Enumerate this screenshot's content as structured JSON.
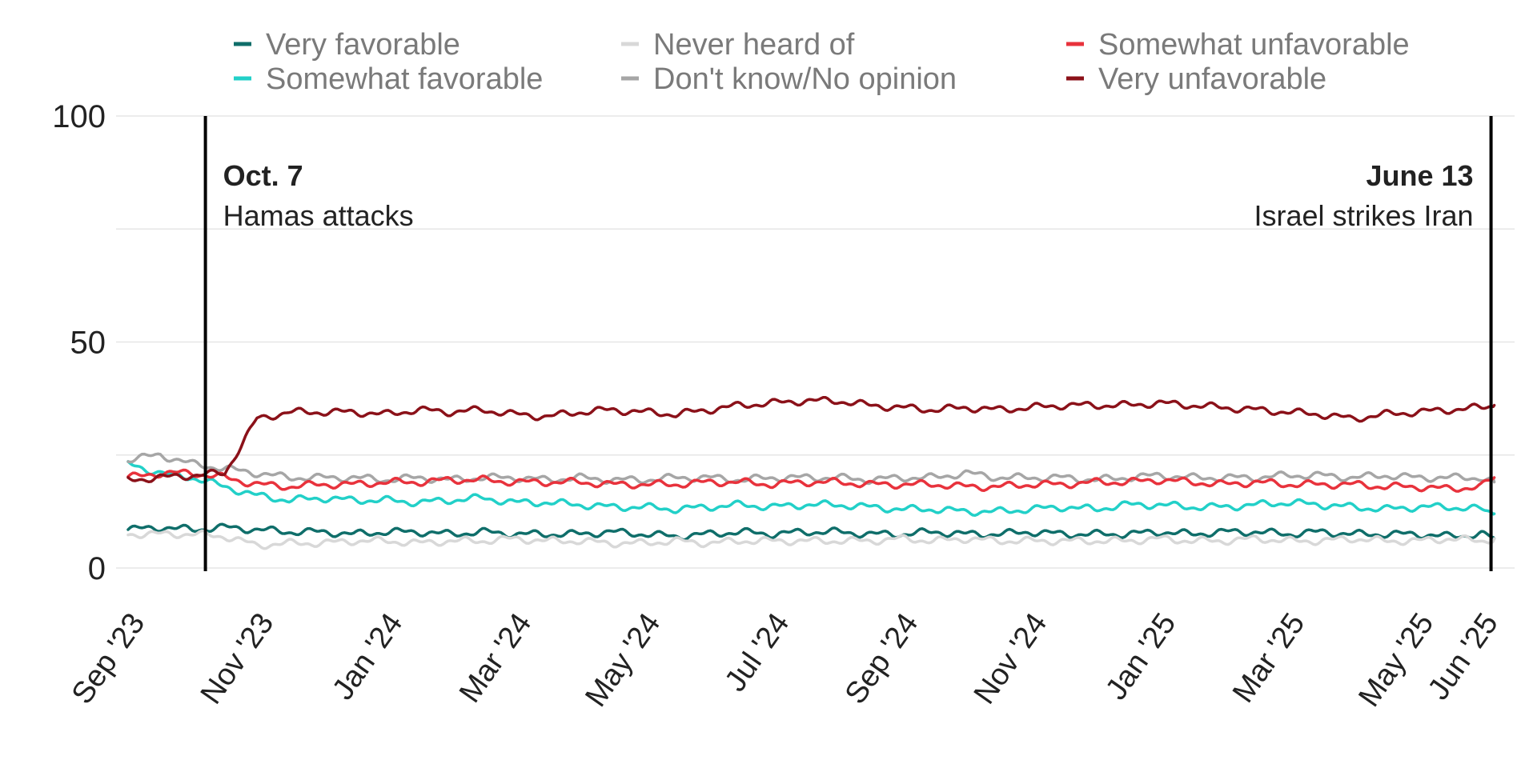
{
  "chart_data": {
    "type": "line",
    "title": "",
    "xlabel": "",
    "ylabel": "",
    "ylim": [
      0,
      100
    ],
    "yticks": [
      0,
      50,
      100
    ],
    "grid": true,
    "legend_position": "top",
    "x_start": "Sep '23",
    "x_end": "Jun '25",
    "x_ticks": [
      "Sep '23",
      "Nov '23",
      "Jan '24",
      "Mar '24",
      "May '24",
      "Jul '24",
      "Sep '24",
      "Nov '24",
      "Jan '25",
      "Mar '25",
      "May '25",
      "Jun '25"
    ],
    "x_tick_months": [
      0,
      2,
      4,
      6,
      8,
      10,
      12,
      14,
      16,
      18,
      20,
      21
    ],
    "x_sample_months": [
      0,
      0.5,
      1,
      1.5,
      2,
      2.5,
      3,
      3.5,
      4,
      4.5,
      5,
      5.5,
      6,
      6.5,
      7,
      7.5,
      8,
      8.5,
      9,
      9.5,
      10,
      10.5,
      11,
      11.5,
      12,
      12.5,
      13,
      13.5,
      14,
      14.5,
      15,
      15.5,
      16,
      16.5,
      17,
      17.5,
      18,
      18.5,
      19,
      19.5,
      20,
      20.5,
      21,
      21.2
    ],
    "annotations": [
      {
        "month": 1.2,
        "title": "Oct. 7",
        "subtitle": "Hamas attacks",
        "align": "left"
      },
      {
        "month": 21.15,
        "title": "June 13",
        "subtitle": "Israel strikes Iran",
        "align": "right"
      }
    ],
    "series": [
      {
        "name": "Very favorable",
        "color": "#0f6e6a",
        "values": [
          8.5,
          9,
          8.5,
          9,
          8.5,
          8,
          8,
          7.5,
          8,
          8,
          7.5,
          8,
          7.5,
          7.5,
          7.5,
          8,
          7.5,
          7,
          7.5,
          8,
          7.5,
          8,
          8,
          7.5,
          7.5,
          8,
          7.5,
          7.5,
          8,
          7.5,
          7.5,
          7.5,
          8,
          7.5,
          8,
          8,
          7.5,
          8,
          7.5,
          7.5,
          7.5,
          7,
          7.5,
          6.5
        ]
      },
      {
        "name": "Somewhat favorable",
        "color": "#22d0c8",
        "values": [
          23,
          21,
          20,
          18,
          16,
          15,
          15.5,
          15,
          15,
          14.5,
          15,
          15.5,
          14.5,
          14.5,
          14,
          13.5,
          13.5,
          13,
          13.5,
          14,
          13.5,
          14,
          14,
          13.5,
          13,
          13,
          12.5,
          12.5,
          13,
          13.5,
          13,
          14,
          14,
          13.5,
          13.5,
          14,
          14.5,
          14,
          13.5,
          13,
          13.5,
          13.5,
          13,
          12
        ]
      },
      {
        "name": "Never heard of",
        "color": "#d8d8d8",
        "values": [
          7.5,
          7.5,
          7.5,
          7,
          5,
          5.5,
          5.5,
          6,
          6,
          5.5,
          6,
          6,
          6.5,
          6,
          6,
          5.5,
          5.5,
          6,
          5.5,
          6,
          6,
          6,
          6,
          6,
          6.5,
          6,
          6.5,
          6,
          6,
          6,
          6,
          6,
          6.5,
          6,
          6,
          6.5,
          6,
          6,
          6.5,
          6,
          6,
          6.5,
          6,
          6.5
        ]
      },
      {
        "name": "Don't know/No opinion",
        "color": "#a6a6a6",
        "values": [
          24,
          25,
          23,
          22,
          21,
          20,
          20,
          20,
          19.5,
          20,
          19.5,
          20,
          20,
          19.5,
          20,
          19.5,
          19.5,
          20,
          20,
          19.5,
          20,
          20,
          20,
          19.5,
          20,
          20,
          21,
          20,
          20,
          20,
          19.5,
          20,
          20.5,
          20,
          20,
          20,
          20.5,
          20.5,
          20,
          20.5,
          20,
          20,
          20,
          19
        ]
      },
      {
        "name": "Somewhat unfavorable",
        "color": "#e8323c",
        "values": [
          20,
          21,
          21,
          20,
          18.5,
          18,
          18.5,
          18.5,
          19,
          19,
          19.5,
          19.5,
          19,
          19,
          19,
          18.5,
          18.5,
          18.5,
          19,
          19,
          18.5,
          19,
          19,
          18.5,
          18.5,
          18.5,
          18,
          18,
          18.5,
          18.5,
          19,
          19,
          19.5,
          19,
          18.5,
          19,
          18.5,
          18.5,
          18.5,
          18,
          18,
          17.5,
          18,
          20
        ]
      },
      {
        "name": "Very unfavorable",
        "color": "#8b1119",
        "values": [
          19.5,
          20,
          20.5,
          21,
          33,
          34.5,
          34.5,
          34.5,
          34,
          35,
          34.5,
          35,
          34,
          33.5,
          34.5,
          35,
          34.5,
          34,
          35,
          36,
          36.5,
          37,
          37,
          36,
          35.5,
          35,
          35.5,
          35,
          35.5,
          36,
          36,
          36,
          36.5,
          36,
          35.5,
          35,
          34.5,
          34,
          33,
          34,
          34.5,
          35,
          35.5,
          36
        ]
      }
    ]
  }
}
